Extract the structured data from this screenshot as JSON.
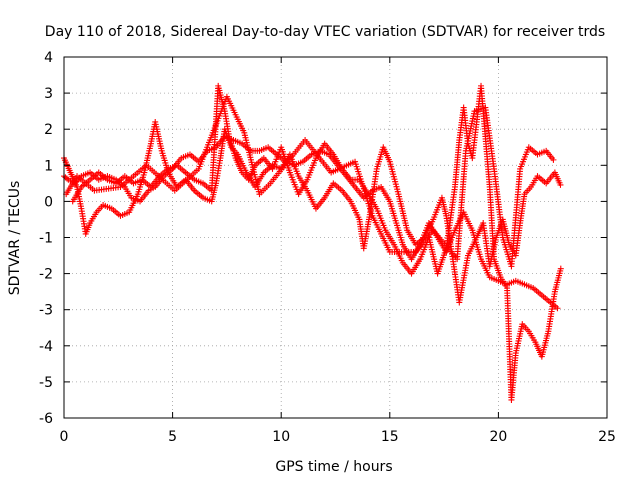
{
  "chart_data": {
    "type": "scatter",
    "title": "Day 110 of 2018, Sidereal Day-to-day VTEC variation (SDTVAR) for receiver trds",
    "xlabel": "GPS time / hours",
    "ylabel": "SDTVAR / TECUs",
    "xlim": [
      0,
      25
    ],
    "ylim": [
      -6,
      4
    ],
    "xticks": [
      0,
      5,
      10,
      15,
      20,
      25
    ],
    "yticks": [
      -6,
      -5,
      -4,
      -3,
      -2,
      -1,
      0,
      1,
      2,
      3,
      4
    ],
    "grid": true,
    "marker": "+",
    "series": [
      {
        "name": "SDTVAR",
        "color": "#ff0000",
        "tracks": [
          [
            [
              0.0,
              0.7
            ],
            [
              0.2,
              0.6
            ],
            [
              0.5,
              0.5
            ],
            [
              0.8,
              0.7
            ],
            [
              1.2,
              0.8
            ],
            [
              1.6,
              0.6
            ],
            [
              2.0,
              0.7
            ],
            [
              2.4,
              0.6
            ],
            [
              2.8,
              0.4
            ],
            [
              3.1,
              0.1
            ],
            [
              3.5,
              0.0
            ],
            [
              3.9,
              0.3
            ],
            [
              4.2,
              0.4
            ],
            [
              4.6,
              0.7
            ],
            [
              5.0,
              0.9
            ],
            [
              5.4,
              1.2
            ],
            [
              5.8,
              1.3
            ],
            [
              6.2,
              1.1
            ],
            [
              6.6,
              1.4
            ],
            [
              7.0,
              1.5
            ],
            [
              7.4,
              1.8
            ],
            [
              7.8,
              1.7
            ],
            [
              8.2,
              1.6
            ],
            [
              8.6,
              1.4
            ],
            [
              9.0,
              1.4
            ],
            [
              9.4,
              1.5
            ],
            [
              9.8,
              1.3
            ],
            [
              10.2,
              1.1
            ],
            [
              10.6,
              1.0
            ],
            [
              11.0,
              1.1
            ],
            [
              11.4,
              1.3
            ],
            [
              11.8,
              1.4
            ],
            [
              12.2,
              1.3
            ],
            [
              12.6,
              1.0
            ],
            [
              13.0,
              0.7
            ],
            [
              13.4,
              0.4
            ],
            [
              13.8,
              0.1
            ],
            [
              14.2,
              0.3
            ],
            [
              14.6,
              0.4
            ],
            [
              15.0,
              0.0
            ],
            [
              15.3,
              -0.6
            ],
            [
              15.6,
              -1.2
            ],
            [
              16.0,
              -1.6
            ],
            [
              16.4,
              -1.2
            ],
            [
              16.8,
              -0.6
            ],
            [
              17.2,
              -1.0
            ],
            [
              17.6,
              -1.4
            ],
            [
              18.0,
              -0.8
            ],
            [
              18.4,
              -0.3
            ],
            [
              18.8,
              -0.8
            ],
            [
              19.2,
              -1.6
            ],
            [
              19.6,
              -2.1
            ],
            [
              20.0,
              -2.2
            ],
            [
              20.4,
              -2.3
            ],
            [
              20.8,
              -2.2
            ],
            [
              21.2,
              -2.3
            ],
            [
              21.6,
              -2.4
            ],
            [
              22.0,
              -2.6
            ],
            [
              22.4,
              -2.8
            ],
            [
              22.8,
              -3.0
            ]
          ],
          [
            [
              0.0,
              1.2
            ],
            [
              0.3,
              0.8
            ],
            [
              0.6,
              0.4
            ],
            [
              0.8,
              -0.2
            ],
            [
              1.0,
              -0.9
            ],
            [
              1.2,
              -0.6
            ],
            [
              1.5,
              -0.3
            ],
            [
              1.8,
              -0.1
            ],
            [
              2.2,
              -0.2
            ],
            [
              2.6,
              -0.4
            ],
            [
              3.0,
              -0.3
            ],
            [
              3.4,
              0.2
            ],
            [
              3.7,
              0.8
            ],
            [
              4.0,
              1.6
            ],
            [
              4.2,
              2.2
            ],
            [
              4.5,
              1.4
            ],
            [
              4.8,
              0.8
            ],
            [
              5.2,
              0.4
            ],
            [
              5.6,
              0.6
            ],
            [
              6.0,
              0.3
            ],
            [
              6.4,
              0.1
            ],
            [
              6.8,
              0.0
            ],
            [
              7.0,
              0.5
            ],
            [
              7.2,
              1.2
            ],
            [
              7.4,
              2.0
            ],
            [
              7.7,
              1.5
            ],
            [
              8.0,
              1.3
            ],
            [
              8.4,
              0.8
            ],
            [
              8.8,
              0.4
            ],
            [
              9.2,
              0.8
            ],
            [
              9.6,
              1.0
            ],
            [
              10.0,
              0.9
            ],
            [
              10.4,
              1.3
            ],
            [
              10.8,
              0.7
            ],
            [
              11.2,
              0.3
            ],
            [
              11.6,
              -0.2
            ],
            [
              12.0,
              0.1
            ],
            [
              12.4,
              0.5
            ],
            [
              12.8,
              0.3
            ],
            [
              13.2,
              0.0
            ],
            [
              13.6,
              -0.5
            ],
            [
              13.8,
              -1.3
            ],
            [
              14.1,
              -0.3
            ],
            [
              14.4,
              0.9
            ],
            [
              14.7,
              1.5
            ],
            [
              15.0,
              1.1
            ],
            [
              15.4,
              0.2
            ],
            [
              15.8,
              -0.8
            ],
            [
              16.2,
              -1.2
            ],
            [
              16.6,
              -1.0
            ],
            [
              17.0,
              -0.5
            ],
            [
              17.4,
              0.1
            ],
            [
              17.6,
              -0.4
            ],
            [
              17.9,
              -1.6
            ],
            [
              18.2,
              -2.8
            ],
            [
              18.6,
              -1.5
            ],
            [
              19.0,
              -1.0
            ],
            [
              19.3,
              -0.6
            ],
            [
              19.6,
              -1.8
            ],
            [
              19.9,
              -1.0
            ],
            [
              20.2,
              -0.5
            ],
            [
              20.5,
              -1.2
            ],
            [
              20.8,
              -1.5
            ],
            [
              21.0,
              -0.6
            ],
            [
              21.2,
              0.2
            ],
            [
              21.5,
              0.4
            ],
            [
              21.8,
              0.7
            ],
            [
              22.2,
              0.5
            ],
            [
              22.6,
              0.8
            ],
            [
              22.9,
              0.4
            ]
          ],
          [
            [
              0.4,
              0.0
            ],
            [
              0.8,
              0.4
            ],
            [
              1.2,
              0.6
            ],
            [
              1.6,
              0.8
            ],
            [
              2.0,
              0.6
            ],
            [
              2.4,
              0.5
            ],
            [
              2.8,
              0.7
            ],
            [
              3.2,
              0.5
            ],
            [
              3.6,
              0.6
            ],
            [
              4.0,
              0.4
            ],
            [
              4.4,
              0.7
            ],
            [
              4.8,
              0.9
            ],
            [
              5.2,
              1.0
            ],
            [
              5.6,
              0.8
            ],
            [
              6.0,
              0.6
            ],
            [
              6.4,
              0.5
            ],
            [
              6.8,
              0.3
            ],
            [
              7.1,
              3.2
            ],
            [
              7.4,
              2.5
            ],
            [
              7.6,
              1.8
            ],
            [
              7.9,
              1.2
            ],
            [
              8.2,
              0.8
            ],
            [
              8.5,
              0.6
            ],
            [
              8.8,
              1.0
            ],
            [
              9.2,
              1.2
            ],
            [
              9.6,
              0.9
            ],
            [
              10.0,
              1.5
            ],
            [
              10.4,
              0.8
            ],
            [
              10.8,
              0.2
            ],
            [
              11.2,
              0.6
            ],
            [
              11.6,
              1.2
            ],
            [
              12.0,
              1.6
            ],
            [
              12.4,
              1.3
            ],
            [
              12.8,
              0.9
            ],
            [
              13.2,
              0.6
            ],
            [
              13.6,
              0.6
            ],
            [
              14.0,
              0.2
            ],
            [
              14.4,
              -0.2
            ],
            [
              14.8,
              -0.8
            ],
            [
              15.2,
              -1.2
            ],
            [
              15.6,
              -1.7
            ],
            [
              16.0,
              -2.0
            ],
            [
              16.4,
              -1.6
            ],
            [
              16.8,
              -1.0
            ],
            [
              17.2,
              -2.0
            ],
            [
              17.6,
              -1.3
            ],
            [
              18.0,
              0.4
            ],
            [
              18.2,
              1.7
            ],
            [
              18.4,
              2.6
            ],
            [
              18.6,
              1.6
            ],
            [
              18.8,
              1.2
            ],
            [
              19.0,
              2.2
            ],
            [
              19.2,
              3.2
            ],
            [
              19.4,
              1.8
            ],
            [
              19.6,
              0.4
            ],
            [
              19.8,
              -1.6
            ],
            [
              20.1,
              -2.1
            ],
            [
              20.4,
              -2.4
            ],
            [
              20.6,
              -5.5
            ],
            [
              20.8,
              -4.2
            ],
            [
              21.1,
              -3.4
            ],
            [
              21.4,
              -3.6
            ],
            [
              21.7,
              -3.9
            ],
            [
              22.0,
              -4.3
            ],
            [
              22.3,
              -3.6
            ],
            [
              22.6,
              -2.5
            ],
            [
              22.9,
              -1.8
            ]
          ],
          [
            [
              0.1,
              0.2
            ],
            [
              0.6,
              0.7
            ],
            [
              1.4,
              0.3
            ],
            [
              2.6,
              0.4
            ],
            [
              3.8,
              1.0
            ],
            [
              5.1,
              0.3
            ],
            [
              6.2,
              0.9
            ],
            [
              7.5,
              2.9
            ],
            [
              8.3,
              1.9
            ],
            [
              9.0,
              0.2
            ],
            [
              9.5,
              0.5
            ],
            [
              11.1,
              1.7
            ],
            [
              12.3,
              0.8
            ],
            [
              13.4,
              1.1
            ],
            [
              14.2,
              -0.4
            ],
            [
              15.0,
              -1.4
            ],
            [
              16.2,
              -1.4
            ],
            [
              17.0,
              -0.8
            ],
            [
              18.1,
              -1.6
            ],
            [
              18.5,
              1.4
            ],
            [
              18.9,
              2.5
            ],
            [
              19.4,
              2.6
            ],
            [
              19.8,
              0.9
            ],
            [
              20.2,
              -1.0
            ],
            [
              20.6,
              -1.8
            ],
            [
              21.0,
              0.9
            ],
            [
              21.4,
              1.5
            ],
            [
              21.8,
              1.3
            ],
            [
              22.2,
              1.4
            ],
            [
              22.6,
              1.1
            ]
          ]
        ]
      }
    ]
  }
}
